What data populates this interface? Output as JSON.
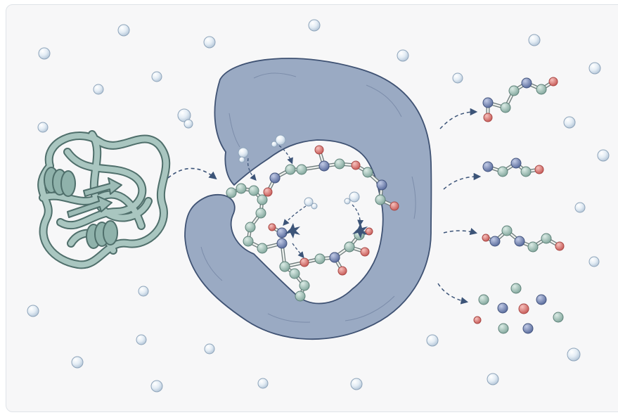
{
  "figure": {
    "kind": "protein-hydrolysis-illustration",
    "printed_text": []
  },
  "colors": {
    "background": "#f7f7f8",
    "enzyme_fill": "#9aaac3",
    "enzyme_outline": "#3f5273",
    "protein_ribbon": "#9dbcb6",
    "protein_outline": "#4f6f6b",
    "atom_carbon": "#a9c7bd",
    "atom_nitrogen": "#7d8fbd",
    "atom_oxygen": "#e07f7d",
    "water_bubble": "#dde9f3",
    "arrow": "#3c5478"
  },
  "icons": {
    "folded_protein": "coiled-protein-icon",
    "enzyme": "enzyme-pocket-icon",
    "water": "water-molecule-icon",
    "cleavage": "bond-cleavage-spark-icon"
  },
  "products": {
    "peptide_count": 3,
    "free_amino_acid_count": 10
  }
}
